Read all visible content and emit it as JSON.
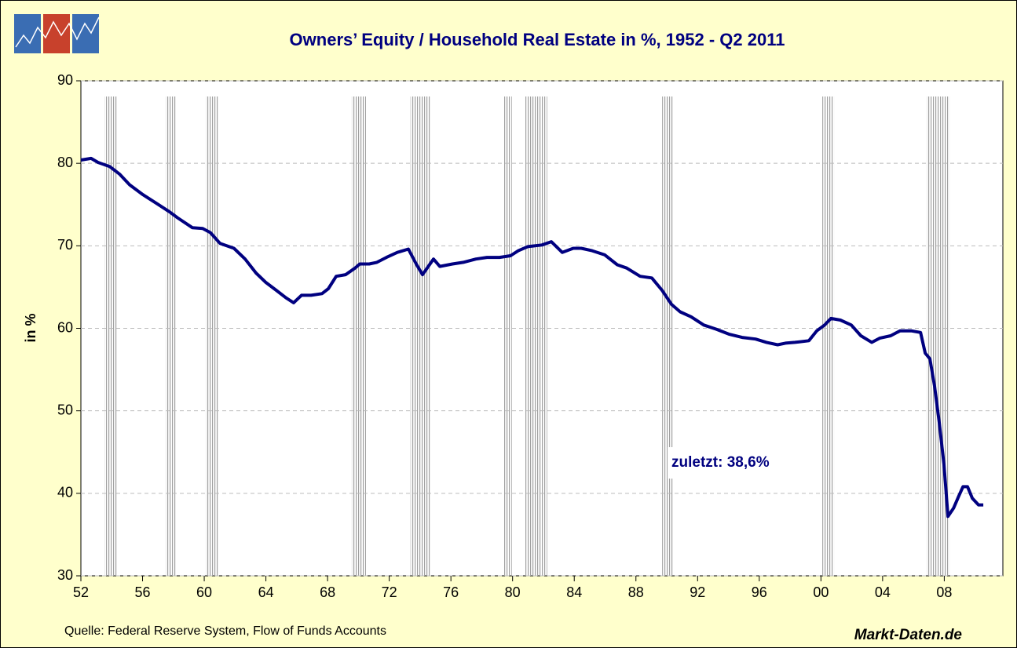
{
  "chart_data": {
    "type": "line",
    "title": "Owners’ Equity /  Household Real Estate in %, 1952 - Q2 2011",
    "y_label": "in %",
    "annotation": "zuletzt: 38,6%",
    "source": "Quelle: Federal Reserve System, Flow of Funds Accounts",
    "brand": "Markt-Daten.de",
    "color": "#000080",
    "grid": true,
    "xlim": [
      1952,
      2011.8
    ],
    "ylim": [
      30,
      90
    ],
    "yticks": [
      30,
      40,
      50,
      60,
      70,
      80,
      90
    ],
    "xticks": [
      {
        "value": 1952,
        "label": "52"
      },
      {
        "value": 1956,
        "label": "56"
      },
      {
        "value": 1960,
        "label": "60"
      },
      {
        "value": 1964,
        "label": "64"
      },
      {
        "value": 1968,
        "label": "68"
      },
      {
        "value": 1972,
        "label": "72"
      },
      {
        "value": 1976,
        "label": "76"
      },
      {
        "value": 1980,
        "label": "80"
      },
      {
        "value": 1984,
        "label": "84"
      },
      {
        "value": 1988,
        "label": "88"
      },
      {
        "value": 1992,
        "label": "92"
      },
      {
        "value": 1996,
        "label": "96"
      },
      {
        "value": 2000,
        "label": "00"
      },
      {
        "value": 2004,
        "label": "04"
      },
      {
        "value": 2008,
        "label": "08"
      }
    ],
    "recessions": [
      [
        1953.53,
        1954.34
      ],
      [
        1957.5,
        1958.16
      ],
      [
        1960.1,
        1960.96
      ],
      [
        1969.57,
        1970.49
      ],
      [
        1973.38,
        1974.65
      ],
      [
        1979.4,
        1979.95
      ],
      [
        1980.81,
        1982.24
      ],
      [
        1989.7,
        1990.4
      ],
      [
        2000.09,
        2000.85
      ],
      [
        2006.86,
        2008.34
      ]
    ],
    "x": [
      1952.0,
      1952.66,
      1953.12,
      1953.88,
      1954.5,
      1955.16,
      1956.02,
      1956.94,
      1957.76,
      1958.27,
      1959.23,
      1959.9,
      1960.4,
      1961.02,
      1961.93,
      1962.65,
      1963.36,
      1963.97,
      1964.68,
      1965.3,
      1965.8,
      1966.31,
      1966.93,
      1967.64,
      1968.05,
      1968.56,
      1969.17,
      1969.78,
      1970.09,
      1970.7,
      1971.2,
      1971.82,
      1972.53,
      1973.24,
      1973.75,
      1974.16,
      1974.87,
      1975.28,
      1976.1,
      1976.8,
      1977.62,
      1978.34,
      1979.15,
      1979.86,
      1980.37,
      1980.98,
      1981.9,
      1982.51,
      1983.22,
      1983.94,
      1984.45,
      1985.16,
      1985.98,
      1986.79,
      1987.4,
      1988.27,
      1989.03,
      1989.7,
      1990.31,
      1990.87,
      1991.58,
      1992.4,
      1993.21,
      1994.03,
      1994.89,
      1995.76,
      1996.47,
      1997.19,
      1997.7,
      1998.31,
      1999.22,
      1999.73,
      2000.24,
      2000.65,
      2001.26,
      2001.97,
      2002.59,
      2003.3,
      2003.81,
      2004.52,
      2005.13,
      2005.85,
      2006.46,
      2006.76,
      2007.07,
      2007.37,
      2007.68,
      2007.98,
      2008.24,
      2008.6,
      2008.9,
      2009.21,
      2009.51,
      2009.82,
      2010.22,
      2010.53
    ],
    "values": [
      80.4,
      80.6,
      80.1,
      79.6,
      78.7,
      77.4,
      76.2,
      75.1,
      74.1,
      73.4,
      72.2,
      72.1,
      71.6,
      70.3,
      69.7,
      68.4,
      66.7,
      65.6,
      64.6,
      63.7,
      63.1,
      64.0,
      64.0,
      64.2,
      64.8,
      66.3,
      66.5,
      67.3,
      67.8,
      67.8,
      68.0,
      68.6,
      69.2,
      69.6,
      67.8,
      66.5,
      68.4,
      67.5,
      67.8,
      68.0,
      68.4,
      68.6,
      68.6,
      68.8,
      69.4,
      69.9,
      70.1,
      70.5,
      69.2,
      69.7,
      69.7,
      69.4,
      68.9,
      67.7,
      67.3,
      66.3,
      66.1,
      64.6,
      62.9,
      62.0,
      61.4,
      60.4,
      59.9,
      59.3,
      58.9,
      58.7,
      58.3,
      58.0,
      58.2,
      58.3,
      58.5,
      59.7,
      60.4,
      61.2,
      61.0,
      60.4,
      59.1,
      58.3,
      58.8,
      59.1,
      59.7,
      59.7,
      59.5,
      57.0,
      56.3,
      53.0,
      48.5,
      43.5,
      37.2,
      38.2,
      39.5,
      40.8,
      40.8,
      39.4,
      38.6,
      38.6
    ]
  }
}
